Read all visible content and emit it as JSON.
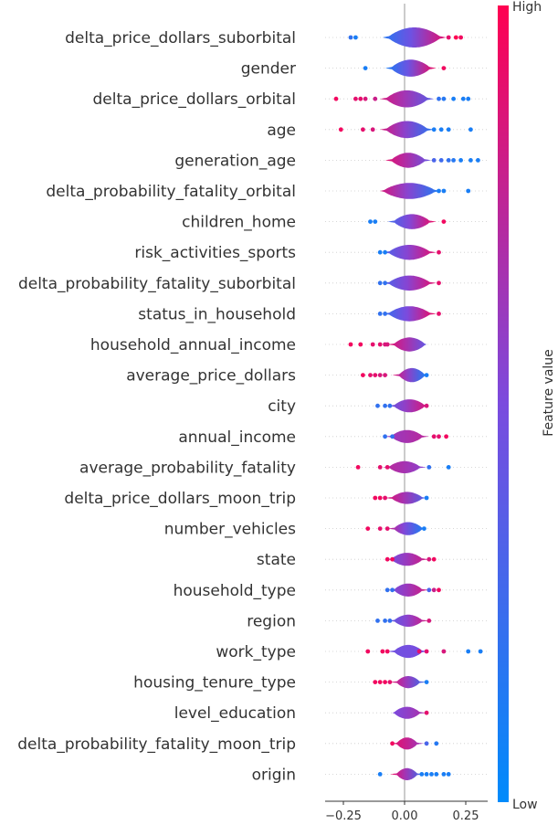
{
  "chart_data": {
    "type": "violin",
    "title": "",
    "xlabel": "",
    "xlim": [
      -0.3,
      0.32
    ],
    "x_ticks": [
      -0.25,
      0.0,
      0.25
    ],
    "x_tick_labels": [
      "−0.25",
      "0.00",
      "0.25"
    ],
    "colorbar": {
      "title": "Feature value",
      "high_label": "High",
      "low_label": "Low",
      "high_color": "#ff0051",
      "low_color": "#008bfb"
    },
    "features": [
      {
        "name": "delta_price_dollars_suborbital",
        "range": [
          -0.22,
          0.23
        ],
        "core": [
          -0.06,
          0.14
        ],
        "width": 1.0,
        "lcol": 0.15,
        "rcol": 0.9,
        "points": [
          [
            -0.22,
            0.2
          ],
          [
            -0.2,
            0.1
          ],
          [
            0.18,
            0.9
          ],
          [
            0.21,
            1.0
          ],
          [
            0.23,
            0.95
          ]
        ]
      },
      {
        "name": "gender",
        "range": [
          -0.16,
          0.16
        ],
        "core": [
          -0.05,
          0.1
        ],
        "width": 0.85,
        "lcol": 0.1,
        "rcol": 0.95,
        "points": [
          [
            -0.16,
            0.1
          ],
          [
            0.16,
            0.95
          ]
        ]
      },
      {
        "name": "delta_price_dollars_orbital",
        "range": [
          -0.28,
          0.26
        ],
        "core": [
          -0.07,
          0.09
        ],
        "width": 0.85,
        "lcol": 0.85,
        "rcol": 0.35,
        "points": [
          [
            -0.28,
            0.95
          ],
          [
            -0.2,
            0.9
          ],
          [
            -0.18,
            0.9
          ],
          [
            -0.16,
            0.85
          ],
          [
            -0.12,
            0.8
          ],
          [
            0.14,
            0.2
          ],
          [
            0.16,
            0.15
          ],
          [
            0.2,
            0.1
          ],
          [
            0.24,
            0.1
          ],
          [
            0.26,
            0.1
          ]
        ]
      },
      {
        "name": "age",
        "range": [
          -0.26,
          0.27
        ],
        "core": [
          -0.07,
          0.09
        ],
        "width": 0.85,
        "lcol": 0.85,
        "rcol": 0.15,
        "points": [
          [
            -0.26,
            0.95
          ],
          [
            -0.17,
            0.9
          ],
          [
            -0.13,
            0.85
          ],
          [
            0.12,
            0.1
          ],
          [
            0.15,
            0.1
          ],
          [
            0.18,
            0.1
          ],
          [
            0.27,
            0.1
          ]
        ]
      },
      {
        "name": "generation_age",
        "range": [
          -0.1,
          0.3
        ],
        "core": [
          -0.05,
          0.08
        ],
        "width": 0.75,
        "lcol": 0.9,
        "rcol": 0.4,
        "points": [
          [
            0.12,
            0.3
          ],
          [
            0.15,
            0.25
          ],
          [
            0.18,
            0.2
          ],
          [
            0.2,
            0.15
          ],
          [
            0.23,
            0.1
          ],
          [
            0.27,
            0.1
          ],
          [
            0.3,
            0.1
          ]
        ]
      },
      {
        "name": "delta_probability_fatality_orbital",
        "range": [
          -0.1,
          0.26
        ],
        "core": [
          -0.08,
          0.12
        ],
        "width": 0.8,
        "lcol": 0.85,
        "rcol": 0.1,
        "points": [
          [
            0.14,
            0.1
          ],
          [
            0.16,
            0.1
          ],
          [
            0.26,
            0.1
          ]
        ]
      },
      {
        "name": "children_home",
        "range": [
          -0.14,
          0.16
        ],
        "core": [
          -0.04,
          0.1
        ],
        "width": 0.75,
        "lcol": 0.25,
        "rcol": 0.95,
        "points": [
          [
            -0.14,
            0.1
          ],
          [
            -0.12,
            0.1
          ],
          [
            0.16,
            0.95
          ]
        ]
      },
      {
        "name": "risk_activities_sports",
        "range": [
          -0.1,
          0.14
        ],
        "core": [
          -0.06,
          0.1
        ],
        "width": 0.75,
        "lcol": 0.3,
        "rcol": 0.9,
        "points": [
          [
            -0.1,
            0.1
          ],
          [
            -0.08,
            0.1
          ],
          [
            0.14,
            0.9
          ]
        ]
      },
      {
        "name": "delta_probability_fatality_suborbital",
        "range": [
          -0.1,
          0.14
        ],
        "core": [
          -0.06,
          0.1
        ],
        "width": 0.75,
        "lcol": 0.3,
        "rcol": 0.9,
        "points": [
          [
            -0.1,
            0.2
          ],
          [
            -0.08,
            0.2
          ],
          [
            0.14,
            0.9
          ]
        ]
      },
      {
        "name": "status_in_household",
        "range": [
          -0.1,
          0.14
        ],
        "core": [
          -0.06,
          0.1
        ],
        "width": 0.75,
        "lcol": 0.2,
        "rcol": 0.95,
        "points": [
          [
            -0.1,
            0.2
          ],
          [
            -0.08,
            0.2
          ],
          [
            0.14,
            0.9
          ]
        ]
      },
      {
        "name": "household_annual_income",
        "range": [
          -0.22,
          0.09
        ],
        "core": [
          -0.04,
          0.08
        ],
        "width": 0.7,
        "lcol": 0.9,
        "rcol": 0.4,
        "points": [
          [
            -0.22,
            0.95
          ],
          [
            -0.18,
            0.95
          ],
          [
            -0.13,
            0.9
          ],
          [
            -0.1,
            0.9
          ],
          [
            -0.08,
            0.85
          ],
          [
            -0.07,
            0.85
          ]
        ]
      },
      {
        "name": "average_price_dollars",
        "range": [
          -0.17,
          0.09
        ],
        "core": [
          -0.02,
          0.08
        ],
        "width": 0.7,
        "lcol": 0.9,
        "rcol": 0.1,
        "points": [
          [
            -0.17,
            0.95
          ],
          [
            -0.14,
            0.9
          ],
          [
            -0.12,
            0.9
          ],
          [
            -0.1,
            0.85
          ],
          [
            -0.08,
            0.85
          ],
          [
            0.09,
            0.1
          ]
        ]
      },
      {
        "name": "city",
        "range": [
          -0.11,
          0.09
        ],
        "core": [
          -0.04,
          0.08
        ],
        "width": 0.65,
        "lcol": 0.4,
        "rcol": 0.85,
        "points": [
          [
            -0.11,
            0.2
          ],
          [
            -0.08,
            0.2
          ],
          [
            -0.06,
            0.2
          ],
          [
            0.09,
            0.85
          ]
        ]
      },
      {
        "name": "annual_income",
        "range": [
          -0.08,
          0.17
        ],
        "core": [
          -0.05,
          0.07
        ],
        "width": 0.65,
        "lcol": 0.6,
        "rcol": 0.75,
        "points": [
          [
            -0.08,
            0.2
          ],
          [
            -0.05,
            0.2
          ],
          [
            0.12,
            0.9
          ],
          [
            0.14,
            0.9
          ],
          [
            0.17,
            0.95
          ]
        ]
      },
      {
        "name": "average_probability_fatality",
        "range": [
          -0.19,
          0.18
        ],
        "core": [
          -0.06,
          0.06
        ],
        "width": 0.6,
        "lcol": 0.75,
        "rcol": 0.55,
        "points": [
          [
            -0.19,
            0.95
          ],
          [
            -0.1,
            0.9
          ],
          [
            -0.07,
            0.9
          ],
          [
            0.1,
            0.2
          ],
          [
            0.18,
            0.1
          ]
        ]
      },
      {
        "name": "delta_price_dollars_moon_trip",
        "range": [
          -0.12,
          0.09
        ],
        "core": [
          -0.05,
          0.07
        ],
        "width": 0.6,
        "lcol": 0.9,
        "rcol": 0.3,
        "points": [
          [
            -0.12,
            0.95
          ],
          [
            -0.1,
            0.95
          ],
          [
            -0.08,
            0.9
          ],
          [
            0.09,
            0.1
          ]
        ]
      },
      {
        "name": "number_vehicles",
        "range": [
          -0.15,
          0.08
        ],
        "core": [
          -0.04,
          0.07
        ],
        "width": 0.65,
        "lcol": 0.8,
        "rcol": 0.1,
        "points": [
          [
            -0.15,
            0.95
          ],
          [
            -0.1,
            0.9
          ],
          [
            -0.07,
            0.9
          ],
          [
            0.08,
            0.1
          ]
        ]
      },
      {
        "name": "state",
        "range": [
          -0.07,
          0.12
        ],
        "core": [
          -0.05,
          0.07
        ],
        "width": 0.65,
        "lcol": 0.45,
        "rcol": 0.85,
        "points": [
          [
            -0.07,
            0.95
          ],
          [
            -0.05,
            0.95
          ],
          [
            0.1,
            0.85
          ],
          [
            0.12,
            0.95
          ]
        ]
      },
      {
        "name": "household_type",
        "range": [
          -0.07,
          0.14
        ],
        "core": [
          -0.04,
          0.07
        ],
        "width": 0.65,
        "lcol": 0.45,
        "rcol": 0.85,
        "points": [
          [
            -0.07,
            0.2
          ],
          [
            -0.05,
            0.2
          ],
          [
            0.1,
            0.3
          ],
          [
            0.12,
            0.8
          ],
          [
            0.14,
            0.95
          ]
        ]
      },
      {
        "name": "region",
        "range": [
          -0.11,
          0.1
        ],
        "core": [
          -0.04,
          0.07
        ],
        "width": 0.6,
        "lcol": 0.35,
        "rcol": 0.85,
        "points": [
          [
            -0.11,
            0.2
          ],
          [
            -0.08,
            0.2
          ],
          [
            -0.06,
            0.2
          ],
          [
            0.1,
            0.85
          ]
        ]
      },
      {
        "name": "work_type",
        "range": [
          -0.15,
          0.31
        ],
        "core": [
          -0.04,
          0.07
        ],
        "width": 0.65,
        "lcol": 0.45,
        "rcol": 0.5,
        "points": [
          [
            -0.15,
            0.95
          ],
          [
            -0.09,
            0.95
          ],
          [
            -0.07,
            0.95
          ],
          [
            0.06,
            0.9
          ],
          [
            0.09,
            0.9
          ],
          [
            0.16,
            0.85
          ],
          [
            0.26,
            0.1
          ],
          [
            0.31,
            0.1
          ]
        ]
      },
      {
        "name": "housing_tenure_type",
        "range": [
          -0.12,
          0.09
        ],
        "core": [
          -0.03,
          0.06
        ],
        "width": 0.6,
        "lcol": 0.9,
        "rcol": 0.2,
        "points": [
          [
            -0.12,
            0.95
          ],
          [
            -0.1,
            0.95
          ],
          [
            -0.08,
            0.95
          ],
          [
            -0.06,
            0.9
          ],
          [
            0.09,
            0.1
          ]
        ]
      },
      {
        "name": "level_education",
        "range": [
          -0.05,
          0.09
        ],
        "core": [
          -0.04,
          0.06
        ],
        "width": 0.6,
        "lcol": 0.5,
        "rcol": 0.7,
        "points": [
          [
            0.09,
            0.9
          ]
        ]
      },
      {
        "name": "delta_probability_fatality_moon_trip",
        "range": [
          -0.05,
          0.13
        ],
        "core": [
          -0.03,
          0.05
        ],
        "width": 0.6,
        "lcol": 0.9,
        "rcol": 0.6,
        "points": [
          [
            -0.05,
            0.95
          ],
          [
            0.09,
            0.3
          ],
          [
            0.13,
            0.15
          ]
        ]
      },
      {
        "name": "origin",
        "range": [
          -0.1,
          0.18
        ],
        "core": [
          -0.03,
          0.05
        ],
        "width": 0.6,
        "lcol": 0.95,
        "rcol": 0.2,
        "points": [
          [
            -0.1,
            0.1
          ],
          [
            0.07,
            0.1
          ],
          [
            0.09,
            0.1
          ],
          [
            0.11,
            0.1
          ],
          [
            0.13,
            0.1
          ],
          [
            0.16,
            0.1
          ],
          [
            0.18,
            0.1
          ]
        ]
      }
    ]
  }
}
